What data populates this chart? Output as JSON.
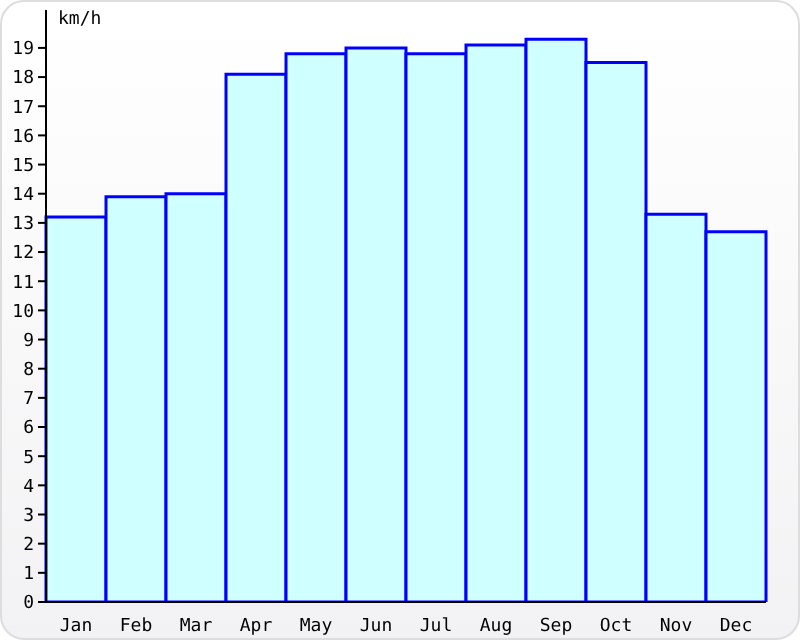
{
  "chart_data": {
    "type": "bar",
    "ylabel": "km/h",
    "categories": [
      "Jan",
      "Feb",
      "Mar",
      "Apr",
      "May",
      "Jun",
      "Jul",
      "Aug",
      "Sep",
      "Oct",
      "Nov",
      "Dec"
    ],
    "values": [
      13.2,
      13.9,
      14.0,
      18.1,
      18.8,
      19.0,
      18.8,
      19.1,
      19.3,
      18.5,
      13.3,
      12.7
    ],
    "color": "#d0ffff",
    "ylim": [
      0,
      20.3
    ],
    "yticks": [
      0,
      1,
      2,
      3,
      4,
      5,
      6,
      7,
      8,
      9,
      10,
      11,
      12,
      13,
      14,
      15,
      16,
      17,
      18,
      19
    ],
    "grid": false
  }
}
